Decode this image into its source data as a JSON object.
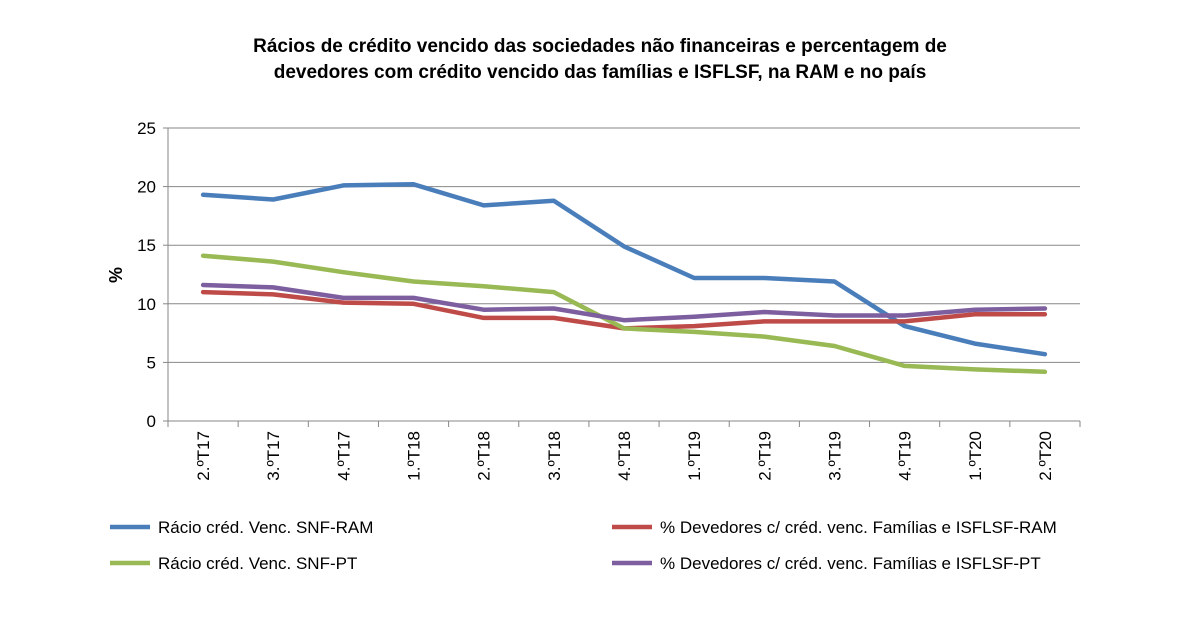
{
  "chart_data": {
    "type": "line",
    "title_lines": [
      "Rácios de crédito vencido das sociedades não financeiras e percentagem de",
      "devedores com crédito vencido das famílias e ISFLSF, na RAM e no país"
    ],
    "xlabel": "",
    "ylabel": "%",
    "ylim": [
      0,
      25
    ],
    "yticks": [
      0,
      5,
      10,
      15,
      20,
      25
    ],
    "grid": true,
    "legend_position": "bottom",
    "categories": [
      "2.ºT17",
      "3.ºT17",
      "4.ºT17",
      "1.ºT18",
      "2.ºT18",
      "3.ºT18",
      "4.ºT18",
      "1.ºT19",
      "2.ºT19",
      "3.ºT19",
      "4.ºT19",
      "1.ºT20",
      "2.ºT20"
    ],
    "series": [
      {
        "name": "Rácio créd. Venc. SNF-RAM",
        "color": "#4a7ebb",
        "values": [
          19.3,
          18.9,
          20.1,
          20.2,
          18.4,
          18.8,
          14.9,
          12.2,
          12.2,
          11.9,
          8.1,
          6.6,
          5.7
        ]
      },
      {
        "name": "% Devedores c/ créd. venc. Famílias e ISFLSF-RAM",
        "color": "#be4b48",
        "values": [
          11.0,
          10.8,
          10.1,
          10.0,
          8.8,
          8.8,
          7.9,
          8.1,
          8.5,
          8.5,
          8.5,
          9.1,
          9.1
        ]
      },
      {
        "name": "Rácio créd. Venc. SNF-PT",
        "color": "#98b954",
        "values": [
          14.1,
          13.6,
          12.7,
          11.9,
          11.5,
          11.0,
          7.9,
          7.6,
          7.2,
          6.4,
          4.7,
          4.4,
          4.2
        ]
      },
      {
        "name": "% Devedores c/ créd. venc. Famílias e ISFLSF-PT",
        "color": "#7d5fa0",
        "values": [
          11.6,
          11.4,
          10.5,
          10.5,
          9.5,
          9.6,
          8.6,
          8.9,
          9.3,
          9.0,
          9.0,
          9.5,
          9.6
        ]
      }
    ]
  }
}
